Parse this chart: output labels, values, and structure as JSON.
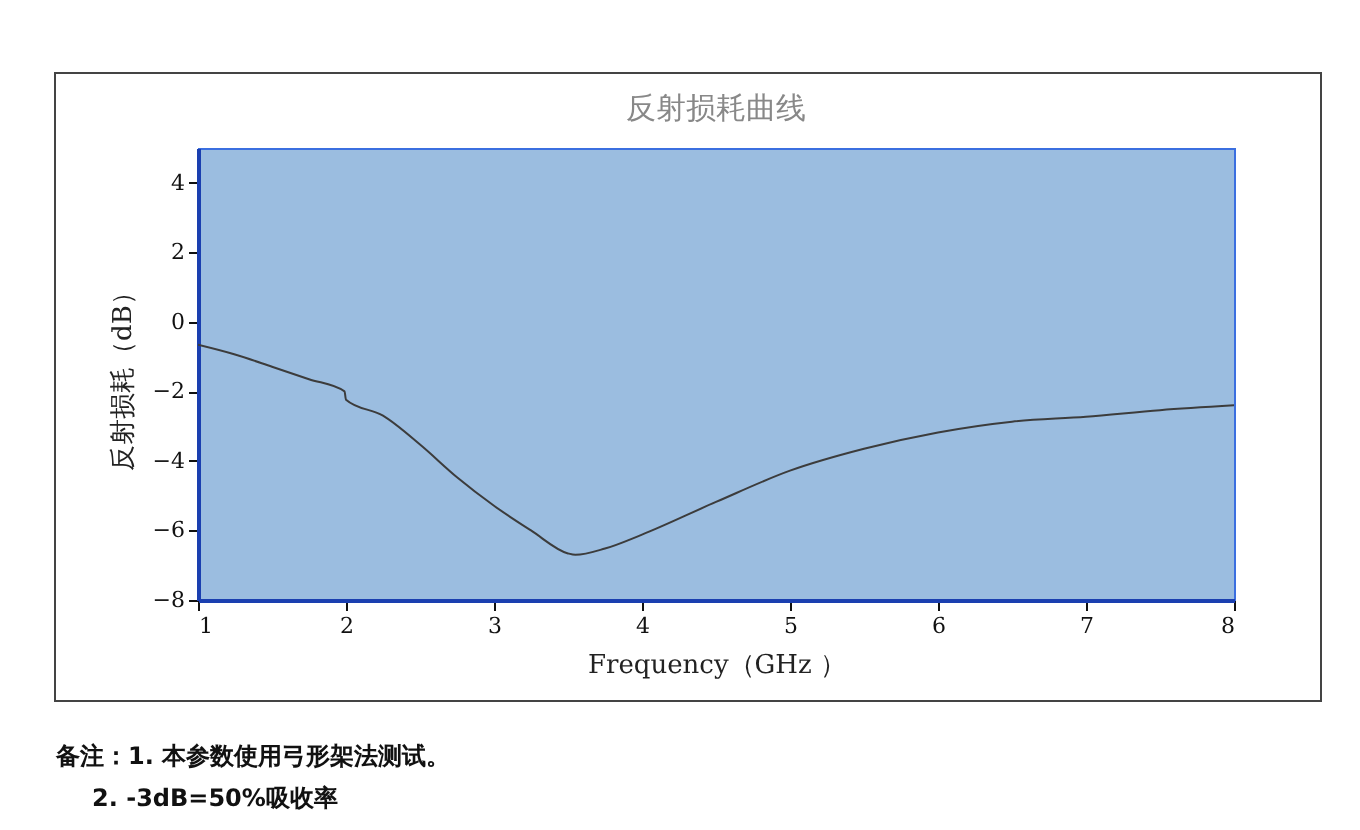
{
  "chart_data": {
    "type": "line",
    "title": "反射损耗曲线",
    "xlabel": "Frequency（GHz ）",
    "ylabel": "反射损耗（dB）",
    "xlim": [
      1,
      8
    ],
    "xticks": [
      1,
      2,
      3,
      4,
      5,
      6,
      7,
      8
    ],
    "ylim": [
      -8,
      5
    ],
    "yticks": [
      -8,
      -6,
      -4,
      -2,
      0,
      2,
      4
    ],
    "grid": false,
    "series": [
      {
        "color": "#3c3c3c",
        "x": [
          1,
          1.25,
          1.5,
          1.75,
          1.99,
          2,
          2.25,
          2.5,
          2.75,
          3,
          3.25,
          3.5,
          3.55,
          3.75,
          4,
          4.5,
          5,
          5.5,
          6,
          6.5,
          7,
          7.5,
          8
        ],
        "values": [
          -0.66,
          -0.94,
          -1.29,
          -1.65,
          -2.0,
          -2.24,
          -2.7,
          -3.53,
          -4.47,
          -5.29,
          -6.0,
          -6.66,
          -6.7,
          -6.52,
          -6.12,
          -5.18,
          -4.28,
          -3.65,
          -3.18,
          -2.87,
          -2.73,
          -2.54,
          -2.4
        ]
      }
    ],
    "annotations": [
      "备注：1. 本参数使用弓形架法测试。",
      "2. -3dB=50%吸收率"
    ]
  }
}
